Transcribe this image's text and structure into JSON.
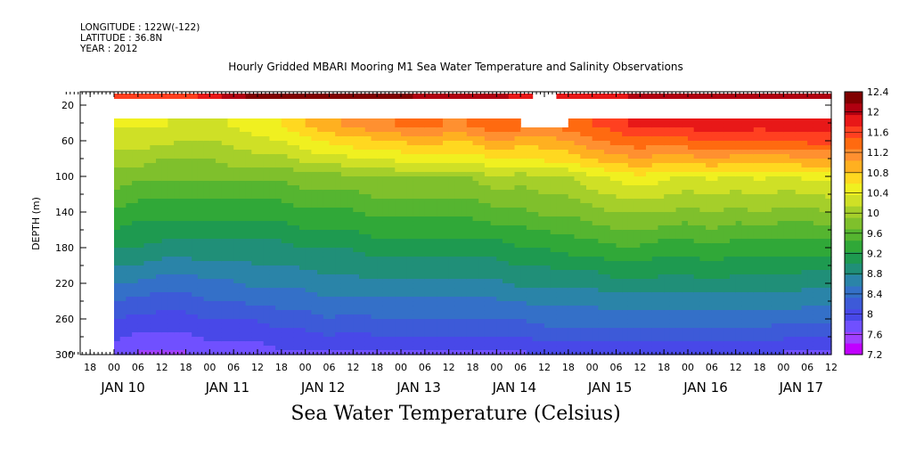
{
  "header": {
    "longitude": "LONGITUDE : 122W(-122)",
    "latitude": "LATITUDE : 36.8N",
    "year": "YEAR : 2012",
    "title": "Hourly Gridded MBARI Mooring M1 Sea Water Temperature and Salinity Observations"
  },
  "colors": {
    "scale": [
      "#c000ff",
      "#a040ff",
      "#7050ff",
      "#4848e8",
      "#3d5ad8",
      "#3470c8",
      "#2a84a8",
      "#208f78",
      "#1e9a50",
      "#30a838",
      "#55b530",
      "#7fc02c",
      "#a5cf2a",
      "#cfe026",
      "#f0f020",
      "#ffd820",
      "#ffb020",
      "#ff9030",
      "#ff6a10",
      "#ff4020",
      "#e81818",
      "#b00010",
      "#800000"
    ]
  },
  "chart_data": {
    "type": "heatmap",
    "title": "Hourly Gridded MBARI Mooring M1 Sea Water Temperature and Salinity Observations",
    "xlabel": "",
    "ylabel": "DEPTH (m)",
    "colorbar_title": "Sea Water Temperature (Celsius)",
    "yticks": [
      20,
      60,
      100,
      140,
      180,
      220,
      260,
      300
    ],
    "ylim": [
      300,
      5
    ],
    "x_hour_ticks": [
      "18",
      "00",
      "06",
      "12",
      "18",
      "00",
      "06",
      "12",
      "18",
      "00",
      "06",
      "12",
      "18",
      "00",
      "06",
      "12",
      "18",
      "00",
      "06",
      "12",
      "18",
      "00",
      "06",
      "12",
      "18",
      "00",
      "06",
      "12",
      "18",
      "00",
      "06",
      "12"
    ],
    "x_day_labels": [
      "JAN 10",
      "JAN 11",
      "JAN 12",
      "JAN 13",
      "JAN 14",
      "JAN 15",
      "JAN 16",
      "JAN 17"
    ],
    "xlim_hours_from_jan10_00": [
      12,
      96
    ],
    "data_x_range": [
      "JAN 10 00",
      "JAN 17 12"
    ],
    "colorbar_levels": [
      7.2,
      7.6,
      8,
      8.4,
      8.8,
      9.2,
      9.6,
      10,
      10.4,
      10.8,
      11.2,
      11.6,
      12,
      12.4
    ],
    "colorbar_ticks": [
      "12.4",
      "12",
      "11.6",
      "11.2",
      "10.8",
      "10.4",
      "10",
      "9.6",
      "9.2",
      "8.8",
      "8.4",
      "8",
      "7.6",
      "7.2"
    ],
    "depths": [
      10,
      40,
      60,
      80,
      100,
      140,
      180,
      220,
      260,
      300
    ],
    "time_hours": [
      0,
      6,
      12,
      18,
      24,
      30,
      36,
      42,
      48,
      54,
      60,
      66,
      72,
      78,
      84,
      90,
      96,
      102,
      108,
      114,
      120,
      126,
      132,
      138,
      144,
      150,
      156,
      162,
      168,
      174,
      180
    ],
    "temperature": [
      [
        11.6,
        11.6,
        11.6,
        11.7,
        11.8,
        12.0,
        12.2,
        12.3,
        12.4,
        12.4,
        12.3,
        12.2,
        12.2,
        12.1,
        12.1,
        12.0,
        12.0,
        11.9,
        null,
        11.8,
        11.8,
        11.9,
        12.0,
        12.0,
        12.0,
        12.0,
        12.0,
        12.0,
        12.0,
        12.0,
        12.0
      ],
      [
        10.4,
        10.4,
        10.4,
        10.3,
        10.3,
        10.4,
        10.5,
        10.6,
        10.8,
        11.0,
        11.1,
        11.2,
        11.3,
        11.4,
        11.2,
        11.3,
        11.5,
        11.4,
        11.3,
        11.4,
        11.5,
        11.6,
        11.8,
        11.8,
        11.8,
        11.9,
        11.9,
        11.8,
        11.9,
        11.9,
        11.9
      ],
      [
        10.2,
        10.2,
        10.2,
        10.1,
        10.1,
        10.2,
        10.3,
        10.3,
        10.5,
        10.6,
        10.7,
        10.7,
        10.8,
        10.9,
        10.8,
        10.8,
        11.0,
        10.9,
        10.9,
        11.0,
        11.2,
        11.3,
        11.4,
        11.3,
        11.4,
        11.5,
        11.4,
        11.4,
        11.4,
        11.5,
        11.5
      ],
      [
        10.0,
        10.0,
        9.9,
        9.9,
        9.9,
        10.0,
        10.0,
        10.0,
        10.2,
        10.2,
        10.3,
        10.3,
        10.4,
        10.4,
        10.4,
        10.4,
        10.6,
        10.5,
        10.6,
        10.6,
        10.8,
        10.9,
        11.0,
        10.9,
        10.9,
        11.0,
        10.9,
        10.9,
        10.9,
        11.0,
        11.0
      ],
      [
        9.8,
        9.7,
        9.7,
        9.7,
        9.7,
        9.7,
        9.7,
        9.7,
        9.8,
        9.8,
        9.8,
        9.9,
        9.9,
        9.9,
        9.9,
        9.9,
        10.1,
        10.0,
        10.1,
        10.1,
        10.3,
        10.4,
        10.5,
        10.4,
        10.3,
        10.4,
        10.3,
        10.4,
        10.3,
        10.4,
        10.4
      ],
      [
        9.4,
        9.3,
        9.3,
        9.3,
        9.3,
        9.3,
        9.3,
        9.3,
        9.4,
        9.4,
        9.4,
        9.5,
        9.5,
        9.5,
        9.5,
        9.5,
        9.6,
        9.6,
        9.7,
        9.7,
        9.8,
        9.9,
        9.9,
        9.9,
        9.8,
        9.9,
        9.8,
        9.9,
        9.8,
        9.8,
        9.9
      ],
      [
        9.0,
        9.0,
        8.9,
        8.9,
        8.9,
        8.9,
        8.9,
        8.9,
        9.0,
        9.0,
        9.0,
        9.1,
        9.1,
        9.1,
        9.1,
        9.1,
        9.1,
        9.2,
        9.2,
        9.3,
        9.3,
        9.4,
        9.4,
        9.3,
        9.3,
        9.4,
        9.3,
        9.3,
        9.3,
        9.3,
        9.3
      ],
      [
        8.5,
        8.5,
        8.4,
        8.4,
        8.5,
        8.5,
        8.6,
        8.6,
        8.6,
        8.7,
        8.7,
        8.7,
        8.7,
        8.7,
        8.7,
        8.7,
        8.7,
        8.8,
        8.8,
        8.8,
        8.8,
        8.9,
        8.9,
        8.9,
        8.9,
        8.9,
        8.9,
        8.9,
        8.9,
        8.8,
        8.8
      ],
      [
        8.1,
        8.0,
        8.0,
        8.0,
        8.1,
        8.1,
        8.1,
        8.2,
        8.2,
        8.3,
        8.2,
        8.3,
        8.3,
        8.3,
        8.3,
        8.3,
        8.3,
        8.3,
        8.4,
        8.4,
        8.4,
        8.4,
        8.4,
        8.4,
        8.4,
        8.4,
        8.4,
        8.4,
        8.4,
        8.4,
        8.4
      ],
      [
        7.7,
        7.6,
        7.6,
        7.6,
        7.7,
        7.7,
        7.7,
        7.8,
        7.8,
        7.8,
        7.8,
        7.8,
        7.8,
        7.8,
        7.8,
        7.8,
        7.8,
        7.8,
        7.9,
        7.9,
        7.9,
        7.9,
        7.9,
        7.9,
        7.9,
        7.9,
        7.9,
        7.9,
        7.8,
        7.8,
        7.8
      ]
    ]
  }
}
